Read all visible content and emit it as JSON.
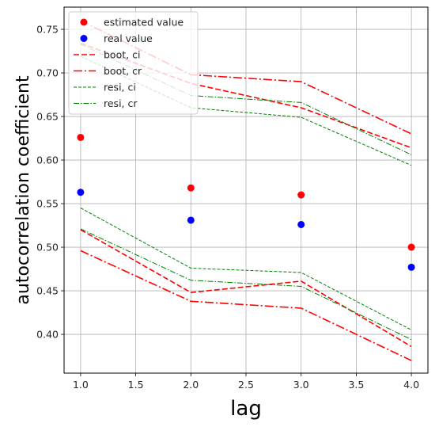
{
  "chart_data": {
    "type": "line",
    "title": "",
    "xlabel": "lag",
    "ylabel": "autocorrelation coefficient",
    "xlim": [
      0.85,
      4.15
    ],
    "ylim": [
      0.3555,
      0.7755
    ],
    "x": [
      1.0,
      2.0,
      3.0,
      4.0
    ],
    "xticks": [
      1.0,
      1.5,
      2.0,
      2.5,
      3.0,
      3.5,
      4.0
    ],
    "xtick_labels": [
      "1.0",
      "1.5",
      "2.0",
      "2.5",
      "3.0",
      "3.5",
      "4.0"
    ],
    "yticks": [
      0.4,
      0.45,
      0.5,
      0.55,
      0.6,
      0.65,
      0.7,
      0.75
    ],
    "ytick_labels": [
      "0.40",
      "0.45",
      "0.50",
      "0.55",
      "0.60",
      "0.65",
      "0.70",
      "0.75"
    ],
    "grid": true,
    "legend_position": "top-left",
    "points": [
      {
        "name": "estimated value",
        "color": "#ff0000",
        "values": [
          0.626,
          0.568,
          0.56,
          0.5
        ]
      },
      {
        "name": "real value",
        "color": "#0000ff",
        "values": [
          0.563,
          0.531,
          0.526,
          0.477
        ]
      }
    ],
    "series": [
      {
        "name": "boot, ci",
        "color": "#ff0000",
        "style": "dashed",
        "width": "thick",
        "lower": [
          0.52,
          0.448,
          0.461,
          0.386
        ],
        "upper": [
          0.734,
          0.688,
          0.66,
          0.614
        ]
      },
      {
        "name": "boot, cr",
        "color": "#ff0000",
        "style": "dashdot",
        "width": "thick",
        "lower": [
          0.496,
          0.438,
          0.43,
          0.37
        ],
        "upper": [
          0.76,
          0.698,
          0.69,
          0.63
        ]
      },
      {
        "name": "resi, ci",
        "color": "#008000",
        "style": "dashed",
        "width": "thin",
        "lower": [
          0.545,
          0.476,
          0.471,
          0.405
        ],
        "upper": [
          0.719,
          0.66,
          0.649,
          0.594
        ]
      },
      {
        "name": "resi, cr",
        "color": "#008000",
        "style": "dashdot",
        "width": "thin",
        "lower": [
          0.521,
          0.462,
          0.455,
          0.394
        ],
        "upper": [
          0.733,
          0.674,
          0.666,
          0.606
        ]
      }
    ]
  }
}
